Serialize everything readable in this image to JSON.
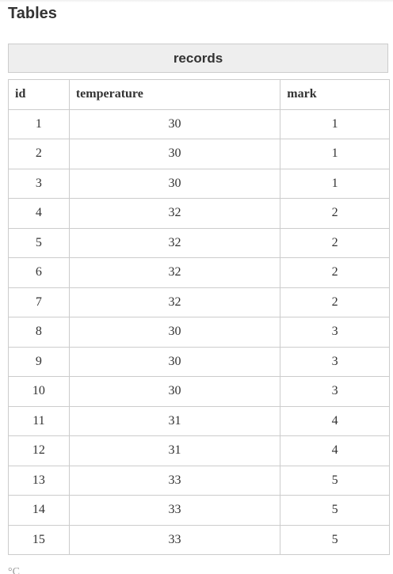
{
  "page": {
    "title": "Tables"
  },
  "table": {
    "caption": "records",
    "columns": [
      "id",
      "temperature",
      "mark"
    ],
    "rows": [
      [
        "1",
        "30",
        "1"
      ],
      [
        "2",
        "30",
        "1"
      ],
      [
        "3",
        "30",
        "1"
      ],
      [
        "4",
        "32",
        "2"
      ],
      [
        "5",
        "32",
        "2"
      ],
      [
        "6",
        "32",
        "2"
      ],
      [
        "7",
        "32",
        "2"
      ],
      [
        "8",
        "30",
        "3"
      ],
      [
        "9",
        "30",
        "3"
      ],
      [
        "10",
        "30",
        "3"
      ],
      [
        "11",
        "31",
        "4"
      ],
      [
        "12",
        "31",
        "4"
      ],
      [
        "13",
        "33",
        "5"
      ],
      [
        "14",
        "33",
        "5"
      ],
      [
        "15",
        "33",
        "5"
      ]
    ]
  },
  "footer": {
    "partial_text": "°C"
  },
  "colors": {
    "caption_bg": "#eeeeee",
    "border": "#cccccc",
    "text": "#333333"
  }
}
